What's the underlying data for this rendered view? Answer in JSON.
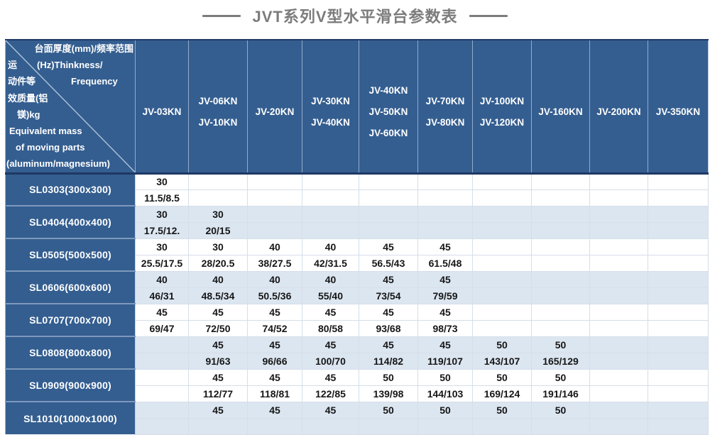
{
  "title": "JVT系列V型水平滑台参数表",
  "corner": {
    "line1": "台面厚度(mm)/频率范围",
    "line2a": "运",
    "line2b": "(Hz)Thinkness/",
    "line3a": "动件等",
    "line3b": "Frequency",
    "line4": "效质量(铝",
    "line5": "镁)kg",
    "line6": "Equivalent mass",
    "line7": "of moving parts",
    "line8": "(aluminum/magnesium)"
  },
  "columns": [
    {
      "id": "jv-03kn",
      "labels": [
        "JV-03KN"
      ]
    },
    {
      "id": "jv-06kn-10kn",
      "labels": [
        "JV-06KN",
        "JV-10KN"
      ]
    },
    {
      "id": "jv-20kn",
      "labels": [
        "JV-20KN"
      ]
    },
    {
      "id": "jv-30kn-40kn",
      "labels": [
        "JV-30KN",
        "JV-40KN"
      ]
    },
    {
      "id": "jv-40kn-50kn-60kn",
      "labels": [
        "JV-40KN",
        "JV-50KN",
        "JV-60KN"
      ]
    },
    {
      "id": "jv-70kn-80kn",
      "labels": [
        "JV-70KN",
        "JV-80KN"
      ]
    },
    {
      "id": "jv-100kn-120kn",
      "labels": [
        "JV-100KN",
        "JV-120KN"
      ]
    },
    {
      "id": "jv-160kn",
      "labels": [
        "JV-160KN"
      ]
    },
    {
      "id": "jv-200kn",
      "labels": [
        "JV-200KN"
      ]
    },
    {
      "id": "jv-350kn",
      "labels": [
        "JV-350KN"
      ]
    }
  ],
  "rows": [
    {
      "label": "SL0303(300x300)",
      "cells": [
        [
          "30",
          "11.5/8.5"
        ],
        null,
        null,
        null,
        null,
        null,
        null,
        null,
        null,
        null
      ]
    },
    {
      "label": "SL0404(400x400)",
      "cells": [
        [
          "30",
          "17.5/12."
        ],
        [
          "30",
          "20/15"
        ],
        null,
        null,
        null,
        null,
        null,
        null,
        null,
        null
      ]
    },
    {
      "label": "SL0505(500x500)",
      "cells": [
        [
          "30",
          "25.5/17.5"
        ],
        [
          "30",
          "28/20.5"
        ],
        [
          "40",
          "38/27.5"
        ],
        [
          "40",
          "42/31.5"
        ],
        [
          "45",
          "56.5/43"
        ],
        [
          "45",
          "61.5/48"
        ],
        null,
        null,
        null,
        null
      ]
    },
    {
      "label": "SL0606(600x600)",
      "cells": [
        [
          "40",
          "46/31"
        ],
        [
          "40",
          "48.5/34"
        ],
        [
          "40",
          "50.5/36"
        ],
        [
          "40",
          "55/40"
        ],
        [
          "45",
          "73/54"
        ],
        [
          "45",
          "79/59"
        ],
        null,
        null,
        null,
        null
      ]
    },
    {
      "label": "SL0707(700x700)",
      "cells": [
        [
          "45",
          "69/47"
        ],
        [
          "45",
          "72/50"
        ],
        [
          "45",
          "74/52"
        ],
        [
          "45",
          "80/58"
        ],
        [
          "45",
          "93/68"
        ],
        [
          "45",
          "98/73"
        ],
        null,
        null,
        null,
        null
      ]
    },
    {
      "label": "SL0808(800x800)",
      "cells": [
        null,
        [
          "45",
          "91/63"
        ],
        [
          "45",
          "96/66"
        ],
        [
          "45",
          "100/70"
        ],
        [
          "45",
          "114/82"
        ],
        [
          "45",
          "119/107"
        ],
        [
          "50",
          "143/107"
        ],
        [
          "50",
          "165/129"
        ],
        null,
        null
      ]
    },
    {
      "label": "SL0909(900x900)",
      "cells": [
        null,
        [
          "45",
          "112/77"
        ],
        [
          "45",
          "118/81"
        ],
        [
          "45",
          "122/85"
        ],
        [
          "50",
          "139/98"
        ],
        [
          "50",
          "144/103"
        ],
        [
          "50",
          "169/124"
        ],
        [
          "50",
          "191/146"
        ],
        null,
        null
      ]
    },
    {
      "label": "SL1010(1000x1000)",
      "cells": [
        null,
        [
          "45",
          ""
        ],
        [
          "45",
          ""
        ],
        [
          "45",
          ""
        ],
        [
          "50",
          ""
        ],
        [
          "50",
          ""
        ],
        [
          "50",
          ""
        ],
        [
          "50",
          ""
        ],
        null,
        null
      ]
    }
  ],
  "colors": {
    "header_blue": "#345e90",
    "band_light_blue": "#dce6f1",
    "divider_navy": "#1f3864",
    "title_gray": "#7c7c7c"
  }
}
